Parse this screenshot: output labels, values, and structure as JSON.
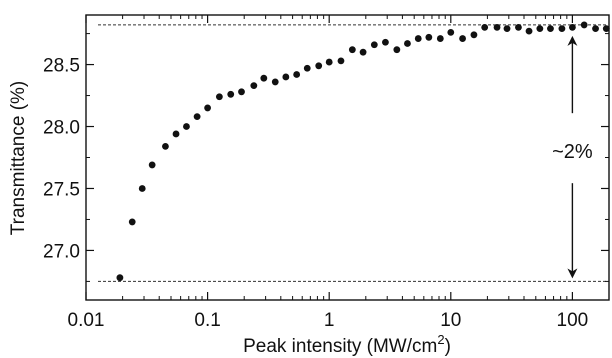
{
  "chart_data": {
    "type": "scatter",
    "xlabel": "Peak intensity (MW/cm",
    "xlabel_sup": "2",
    "xlabel_end": ")",
    "ylabel": "Transmittance (%)",
    "xscale": "log",
    "xlim": [
      0.01,
      200
    ],
    "ylim": [
      26.6,
      28.9
    ],
    "x_ticks": [
      0.01,
      0.1,
      1,
      10,
      100
    ],
    "x_tick_labels": [
      "0.01",
      "0.1",
      "1",
      "10",
      "100"
    ],
    "y_ticks": [
      27.0,
      27.5,
      28.0,
      28.5
    ],
    "y_tick_labels": [
      "27.0",
      "27.5",
      "28.0",
      "28.5"
    ],
    "reference_lines": [
      28.82,
      26.75
    ],
    "annotation": {
      "text": "~2%",
      "x": 100,
      "y_top": 28.82,
      "y_bottom": 26.75
    },
    "grid": false,
    "marker_color": "#111111",
    "points": [
      [
        0.019,
        26.78
      ],
      [
        0.024,
        27.23
      ],
      [
        0.029,
        27.5
      ],
      [
        0.035,
        27.69
      ],
      [
        0.045,
        27.84
      ],
      [
        0.055,
        27.94
      ],
      [
        0.067,
        28.0
      ],
      [
        0.082,
        28.08
      ],
      [
        0.1,
        28.15
      ],
      [
        0.125,
        28.24
      ],
      [
        0.155,
        28.26
      ],
      [
        0.19,
        28.28
      ],
      [
        0.24,
        28.33
      ],
      [
        0.29,
        28.39
      ],
      [
        0.36,
        28.36
      ],
      [
        0.44,
        28.4
      ],
      [
        0.54,
        28.42
      ],
      [
        0.66,
        28.47
      ],
      [
        0.82,
        28.49
      ],
      [
        1.0,
        28.52
      ],
      [
        1.25,
        28.53
      ],
      [
        1.55,
        28.62
      ],
      [
        1.9,
        28.6
      ],
      [
        2.35,
        28.66
      ],
      [
        2.9,
        28.68
      ],
      [
        3.6,
        28.62
      ],
      [
        4.4,
        28.67
      ],
      [
        5.4,
        28.71
      ],
      [
        6.6,
        28.72
      ],
      [
        8.2,
        28.71
      ],
      [
        10.0,
        28.76
      ],
      [
        12.5,
        28.71
      ],
      [
        15.5,
        28.74
      ],
      [
        19.0,
        28.8
      ],
      [
        24.0,
        28.8
      ],
      [
        29.0,
        28.79
      ],
      [
        36.0,
        28.8
      ],
      [
        44.0,
        28.77
      ],
      [
        54.0,
        28.79
      ],
      [
        66.0,
        28.79
      ],
      [
        82.0,
        28.79
      ],
      [
        100.0,
        28.8
      ],
      [
        125.0,
        28.82
      ],
      [
        155.0,
        28.79
      ],
      [
        190.0,
        28.79
      ]
    ]
  }
}
